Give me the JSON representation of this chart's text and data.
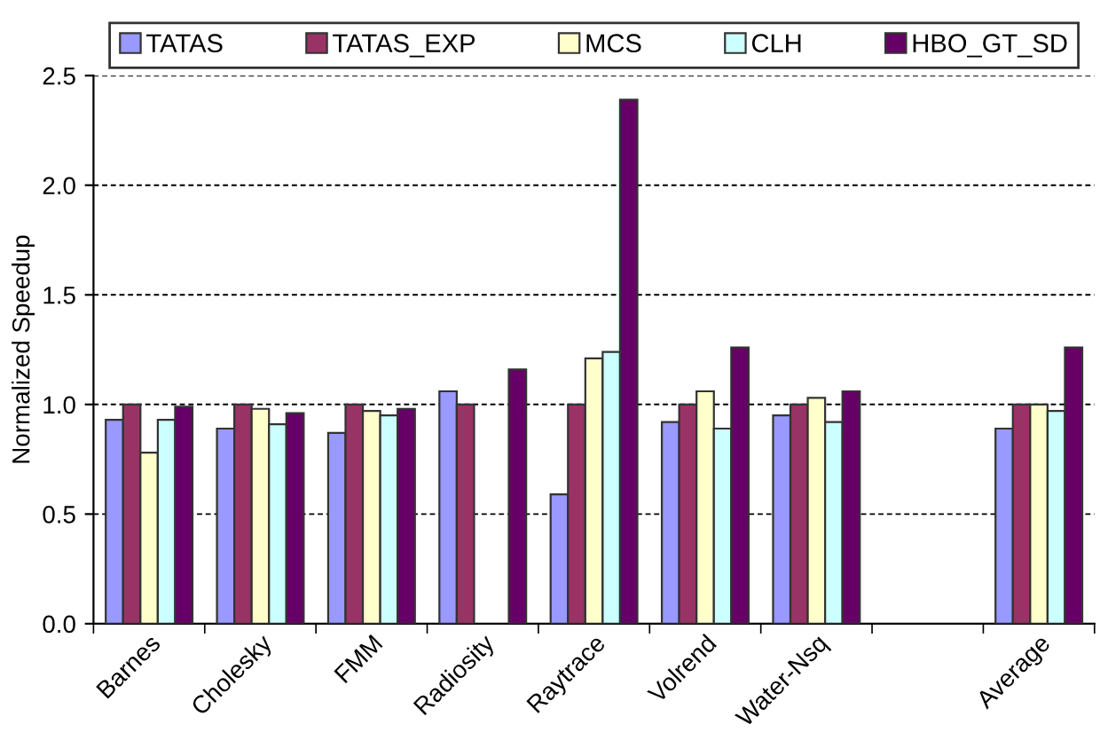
{
  "chart_data": {
    "type": "bar",
    "ylabel": "Normalized Speedup",
    "categories": [
      "Barnes",
      "Cholesky",
      "FMM",
      "Radiosity",
      "Raytrace",
      "Volrend",
      "Water-Nsq",
      null,
      "Average"
    ],
    "series": [
      {
        "name": "TATAS",
        "color": "#9999ff",
        "values": [
          0.93,
          0.89,
          0.87,
          1.06,
          0.59,
          0.92,
          0.95,
          null,
          0.89
        ]
      },
      {
        "name": "TATAS_EXP",
        "color": "#993366",
        "values": [
          1.0,
          1.0,
          1.0,
          1.0,
          1.0,
          1.0,
          1.0,
          null,
          1.0
        ]
      },
      {
        "name": "MCS",
        "color": "#ffffcc",
        "values": [
          0.78,
          0.98,
          0.97,
          null,
          1.21,
          1.06,
          1.03,
          null,
          1.0
        ]
      },
      {
        "name": "CLH",
        "color": "#ccffff",
        "values": [
          0.93,
          0.91,
          0.95,
          null,
          1.24,
          0.89,
          0.92,
          null,
          0.97
        ]
      },
      {
        "name": "HBO_GT_SD",
        "color": "#660066",
        "values": [
          0.99,
          0.96,
          0.98,
          1.16,
          2.39,
          1.26,
          1.06,
          null,
          1.26
        ]
      }
    ],
    "ylim": [
      0,
      2.5
    ],
    "yticks": [
      {
        "value": 0,
        "label": "0.0"
      },
      {
        "value": 0.5,
        "label": "0.5"
      },
      {
        "value": 1,
        "label": "1.0"
      },
      {
        "value": 1.5,
        "label": "1.5"
      },
      {
        "value": 2,
        "label": "2.0"
      },
      {
        "value": 2.5,
        "label": "2.5"
      }
    ],
    "grid": "y",
    "legend": "top"
  }
}
